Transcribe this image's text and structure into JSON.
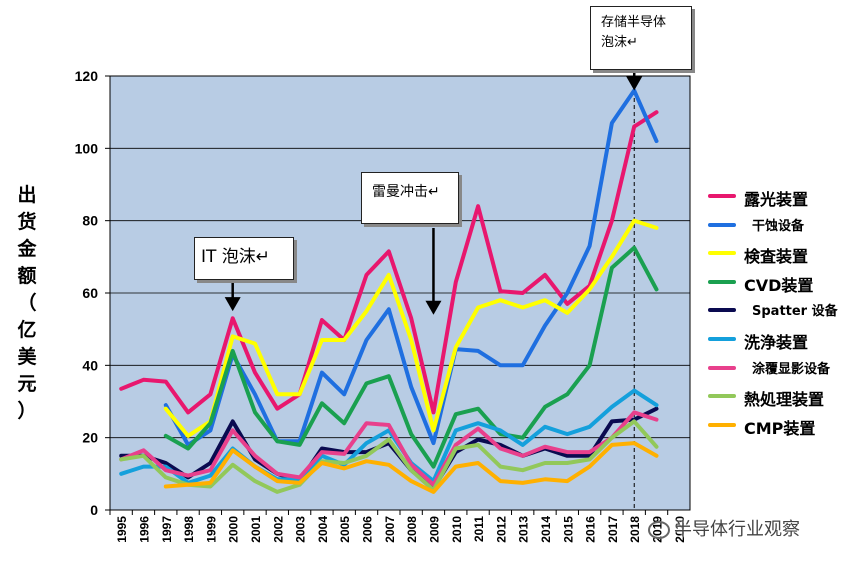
{
  "chart_data": {
    "type": "line",
    "title": "",
    "xlabel": "",
    "ylabel": "出货金额（亿美元）",
    "ylim": [
      0,
      120
    ],
    "yticks": [
      0,
      20,
      40,
      60,
      80,
      100,
      120
    ],
    "grid": true,
    "legend_position": "right",
    "plot_bg": "#b8cce4",
    "categories": [
      "1995",
      "1996",
      "1997",
      "1998",
      "1999",
      "2000",
      "2001",
      "2002",
      "2003",
      "2004",
      "2005",
      "2006",
      "2007",
      "2008",
      "2009",
      "2010",
      "2011",
      "2012",
      "2013",
      "2014",
      "2015",
      "2016",
      "2017",
      "2018",
      "2019",
      "2020"
    ],
    "series": [
      {
        "name": "露光装置",
        "color": "#e8176e",
        "values": [
          33.5,
          36,
          35.5,
          27,
          32,
          53,
          38,
          28,
          32,
          52.5,
          47,
          65,
          71.5,
          53,
          27,
          63,
          84,
          60.5,
          60,
          65,
          57,
          62,
          80,
          106,
          110,
          null
        ]
      },
      {
        "name": "干蚀设备",
        "color": "#1f6fe0",
        "values": [
          null,
          null,
          29,
          18,
          22,
          43,
          32,
          19,
          19,
          38,
          32,
          47,
          55.5,
          34,
          18.5,
          44.5,
          44,
          40,
          40,
          51,
          60,
          73,
          107,
          116,
          102,
          null
        ]
      },
      {
        "name": "検査装置",
        "color": "#ffff00",
        "values": [
          null,
          null,
          28,
          20.5,
          24.5,
          48,
          46,
          32,
          32,
          47,
          47,
          55,
          65,
          47,
          22,
          45,
          56,
          58,
          56,
          58,
          54.5,
          61,
          70,
          80,
          78,
          null
        ]
      },
      {
        "name": "CVD装置",
        "color": "#1aa050",
        "values": [
          null,
          null,
          20.5,
          17,
          24,
          44,
          27,
          19,
          18,
          29.5,
          24,
          35,
          37,
          21,
          12,
          26.5,
          28,
          21,
          20,
          28.5,
          32,
          40,
          67,
          72.5,
          61,
          null
        ]
      },
      {
        "name": "Spatter 设备",
        "color": "#0a0a50",
        "values": [
          15,
          15,
          13,
          9,
          13,
          24.5,
          14,
          10,
          8,
          17,
          16,
          16,
          18.5,
          11,
          6,
          16,
          19.5,
          18,
          15,
          17,
          15,
          15,
          24.5,
          25,
          28,
          null
        ]
      },
      {
        "name": "洗浄装置",
        "color": "#14a0dc",
        "values": [
          10,
          12,
          12,
          7.5,
          9.5,
          17,
          12,
          8.5,
          8.5,
          15,
          12.5,
          18.5,
          22,
          13,
          8,
          22,
          24,
          22,
          18,
          23,
          21,
          23,
          28.5,
          33,
          29,
          null
        ]
      },
      {
        "name": "涂覆显影设备",
        "color": "#e8408c",
        "values": [
          14,
          16.5,
          11,
          9.5,
          11,
          22,
          15,
          10,
          9,
          16,
          15.5,
          24,
          23.5,
          12.5,
          7,
          18,
          22.5,
          17,
          15,
          17.5,
          16,
          16,
          20,
          27,
          25,
          null
        ]
      },
      {
        "name": "熱処理装置",
        "color": "#92c85a",
        "values": [
          14,
          15,
          9,
          7,
          6.5,
          12.5,
          8,
          5,
          7,
          13.5,
          13,
          15,
          19.5,
          11,
          5.5,
          17,
          18,
          12,
          11,
          13,
          13,
          14,
          20,
          24.5,
          17.5,
          null
        ]
      },
      {
        "name": "CMP装置",
        "color": "#ffb000",
        "values": [
          null,
          null,
          6.5,
          7,
          7.5,
          16.5,
          12,
          8,
          7.5,
          13,
          11.5,
          13.5,
          12.5,
          8,
          5,
          12,
          13,
          8,
          7.5,
          8.5,
          8,
          12,
          18,
          18.5,
          15,
          null
        ]
      }
    ],
    "annotations": [
      {
        "text": "IT 泡沫↵",
        "x": "2000",
        "arrow_to_y": 55
      },
      {
        "text": "雷曼冲击↵",
        "x": "2009",
        "arrow_to_y": 54
      },
      {
        "text": "存储半导体泡沫↵",
        "x": "2018",
        "arrow_to_y": 116
      }
    ],
    "reference_line": {
      "x": "2018",
      "style": "dashed"
    }
  },
  "callouts": {
    "it_bubble": "IT 泡沫↵",
    "lehman": "雷曼冲击↵",
    "memory_line1": "存储半导体",
    "memory_line2": "泡沫↵"
  },
  "ylabel_chars": [
    "出",
    "货",
    "金",
    "额",
    "（",
    "亿",
    "美",
    "元",
    "）"
  ],
  "ylabel_mark": "↵",
  "watermark": "半导体行业观察"
}
